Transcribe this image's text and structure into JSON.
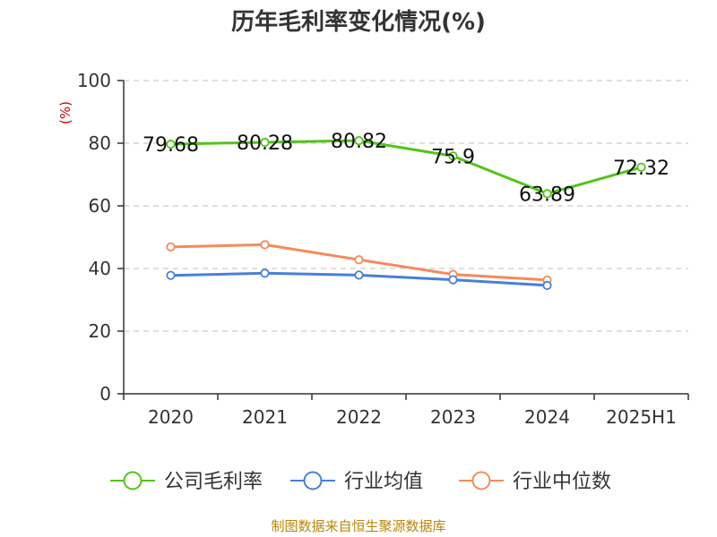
{
  "chart_data": {
    "type": "line",
    "title": "历年毛利率变化情况(%)",
    "ylabel": "(%)",
    "xlabel": "",
    "categories": [
      "2020",
      "2021",
      "2022",
      "2023",
      "2024",
      "2025H1"
    ],
    "ylim": [
      0,
      100
    ],
    "yticks": [
      0,
      20,
      40,
      60,
      80,
      100
    ],
    "grid": true,
    "legend_position": "bottom",
    "series": [
      {
        "name": "公司毛利率",
        "color": "#52c41a",
        "values": [
          79.68,
          80.28,
          80.82,
          75.9,
          63.89,
          72.32
        ],
        "labels": [
          "79.68",
          "80.28",
          "80.82",
          "75.9",
          "63.89",
          "72.32"
        ]
      },
      {
        "name": "行业均值",
        "color": "#4a7fd8",
        "values": [
          37.8,
          38.5,
          37.9,
          36.4,
          34.6,
          null
        ]
      },
      {
        "name": "行业中位数",
        "color": "#f58a5b",
        "values": [
          46.9,
          47.6,
          42.8,
          38.1,
          36.3,
          null
        ]
      }
    ]
  },
  "source": "制图数据来自恒生聚源数据库",
  "colors": {
    "axis": "#333333",
    "grid": "#cccccc",
    "title": "#333333",
    "unit": "#cc0000",
    "source": "#b8860b"
  }
}
